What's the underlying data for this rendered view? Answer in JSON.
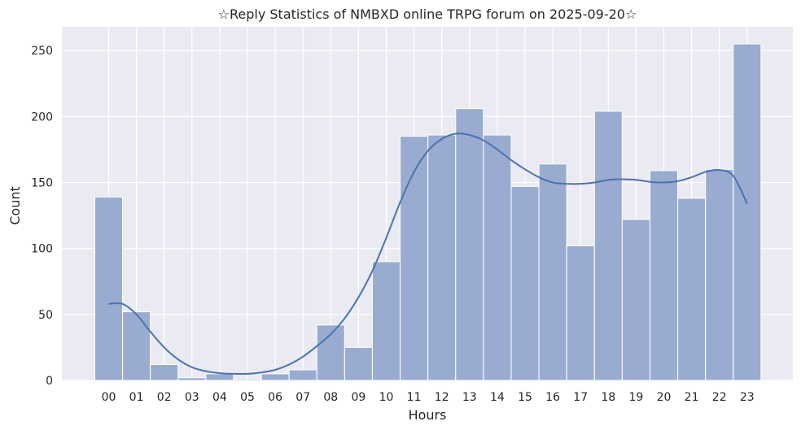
{
  "chart_data": {
    "type": "bar",
    "title": "☆Reply Statistics of NMBXD online TRPG forum on 2025-09-20☆",
    "xlabel": "Hours",
    "ylabel": "Count",
    "categories": [
      "00",
      "01",
      "02",
      "03",
      "04",
      "05",
      "06",
      "07",
      "08",
      "09",
      "10",
      "11",
      "12",
      "13",
      "14",
      "15",
      "16",
      "17",
      "18",
      "19",
      "20",
      "21",
      "22",
      "23"
    ],
    "values": [
      139,
      52,
      12,
      2,
      5,
      1,
      5,
      8,
      42,
      25,
      90,
      185,
      186,
      206,
      186,
      147,
      164,
      102,
      204,
      122,
      159,
      138,
      160,
      255
    ],
    "ylim": [
      0,
      268
    ],
    "yticks": [
      0,
      50,
      100,
      150,
      200,
      250
    ],
    "kde": {
      "x": [
        0,
        0.5,
        1,
        1.5,
        2,
        2.5,
        3,
        3.5,
        4,
        4.5,
        5,
        5.5,
        6,
        6.5,
        7,
        7.5,
        8,
        8.5,
        9,
        9.5,
        10,
        10.5,
        11,
        11.5,
        12,
        12.5,
        13,
        13.5,
        14,
        14.5,
        15,
        15.5,
        16,
        16.5,
        17,
        17.5,
        18,
        18.5,
        19,
        19.5,
        20,
        20.5,
        21,
        21.5,
        22,
        22.5,
        23
      ],
      "y": [
        58,
        58,
        50,
        37,
        25,
        16,
        10,
        7,
        5.5,
        5,
        5,
        6,
        8,
        12,
        18,
        26,
        35,
        47,
        63,
        83,
        108,
        135,
        158,
        174,
        183,
        187,
        186,
        182,
        175,
        167,
        160,
        154,
        150,
        149,
        149,
        150,
        152,
        152.5,
        152,
        150.5,
        150,
        151,
        154,
        158,
        159.5,
        155,
        134
      ]
    },
    "grid": true,
    "legend": "none",
    "colors": {
      "bar_fill": "#99abd0",
      "bar_edge": "#ffffff",
      "kde_line": "#4c72b0",
      "plot_background": "#eaeaf2",
      "grid": "#ffffff"
    }
  }
}
